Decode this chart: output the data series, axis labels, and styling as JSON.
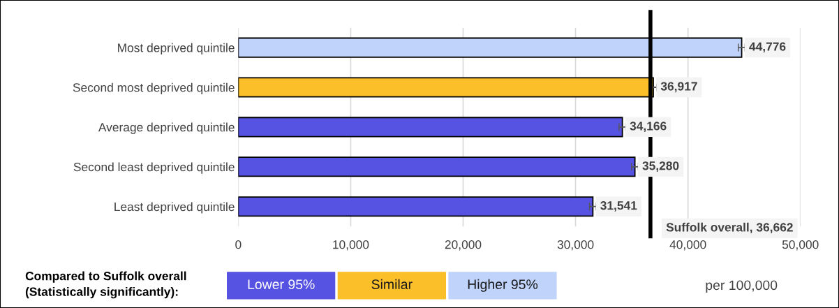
{
  "chart_data": {
    "type": "bar",
    "orientation": "horizontal",
    "categories": [
      "Most deprived quintile",
      "Second most deprived quintile",
      "Average deprived quintile",
      "Second least deprived quintile",
      "Least deprived quintile"
    ],
    "series": [
      {
        "name": "Lower 95%",
        "color": "#5753e2",
        "values": [
          null,
          null,
          34166,
          35280,
          31541
        ],
        "value_labels": [
          null,
          null,
          "34,166",
          "35,280",
          "31,541"
        ],
        "errors": [
          null,
          null,
          300,
          300,
          300
        ]
      },
      {
        "name": "Similar",
        "color": "#fbbf2a",
        "values": [
          null,
          36917,
          null,
          null,
          null
        ],
        "value_labels": [
          null,
          "36,917",
          null,
          null,
          null
        ],
        "errors": [
          null,
          300,
          null,
          null,
          null
        ]
      },
      {
        "name": "Higher 95%",
        "color": "#c0d3fb",
        "values": [
          44776,
          null,
          null,
          null,
          null
        ],
        "value_labels": [
          "44,776",
          null,
          null,
          null,
          null
        ],
        "errors": [
          300,
          null,
          null,
          null,
          null
        ]
      }
    ],
    "xlim": [
      0,
      50000
    ],
    "xticks": [
      {
        "value": 0,
        "label": "0"
      },
      {
        "value": 10000,
        "label": "10,000"
      },
      {
        "value": 20000,
        "label": "20,000"
      },
      {
        "value": 30000,
        "label": "30,000"
      },
      {
        "value": 40000,
        "label": "40,000"
      },
      {
        "value": 50000,
        "label": "50,000"
      }
    ],
    "xlabel": "per 100,000",
    "legend_title": "Compared to Suffolk overall\n(Statistically significantly):",
    "legend": "bottom",
    "grid": "x",
    "ref_lines": [
      {
        "axis": "x",
        "value": 36662,
        "label": "Suffolk overall, 36,662",
        "color": "#000000"
      }
    ]
  }
}
